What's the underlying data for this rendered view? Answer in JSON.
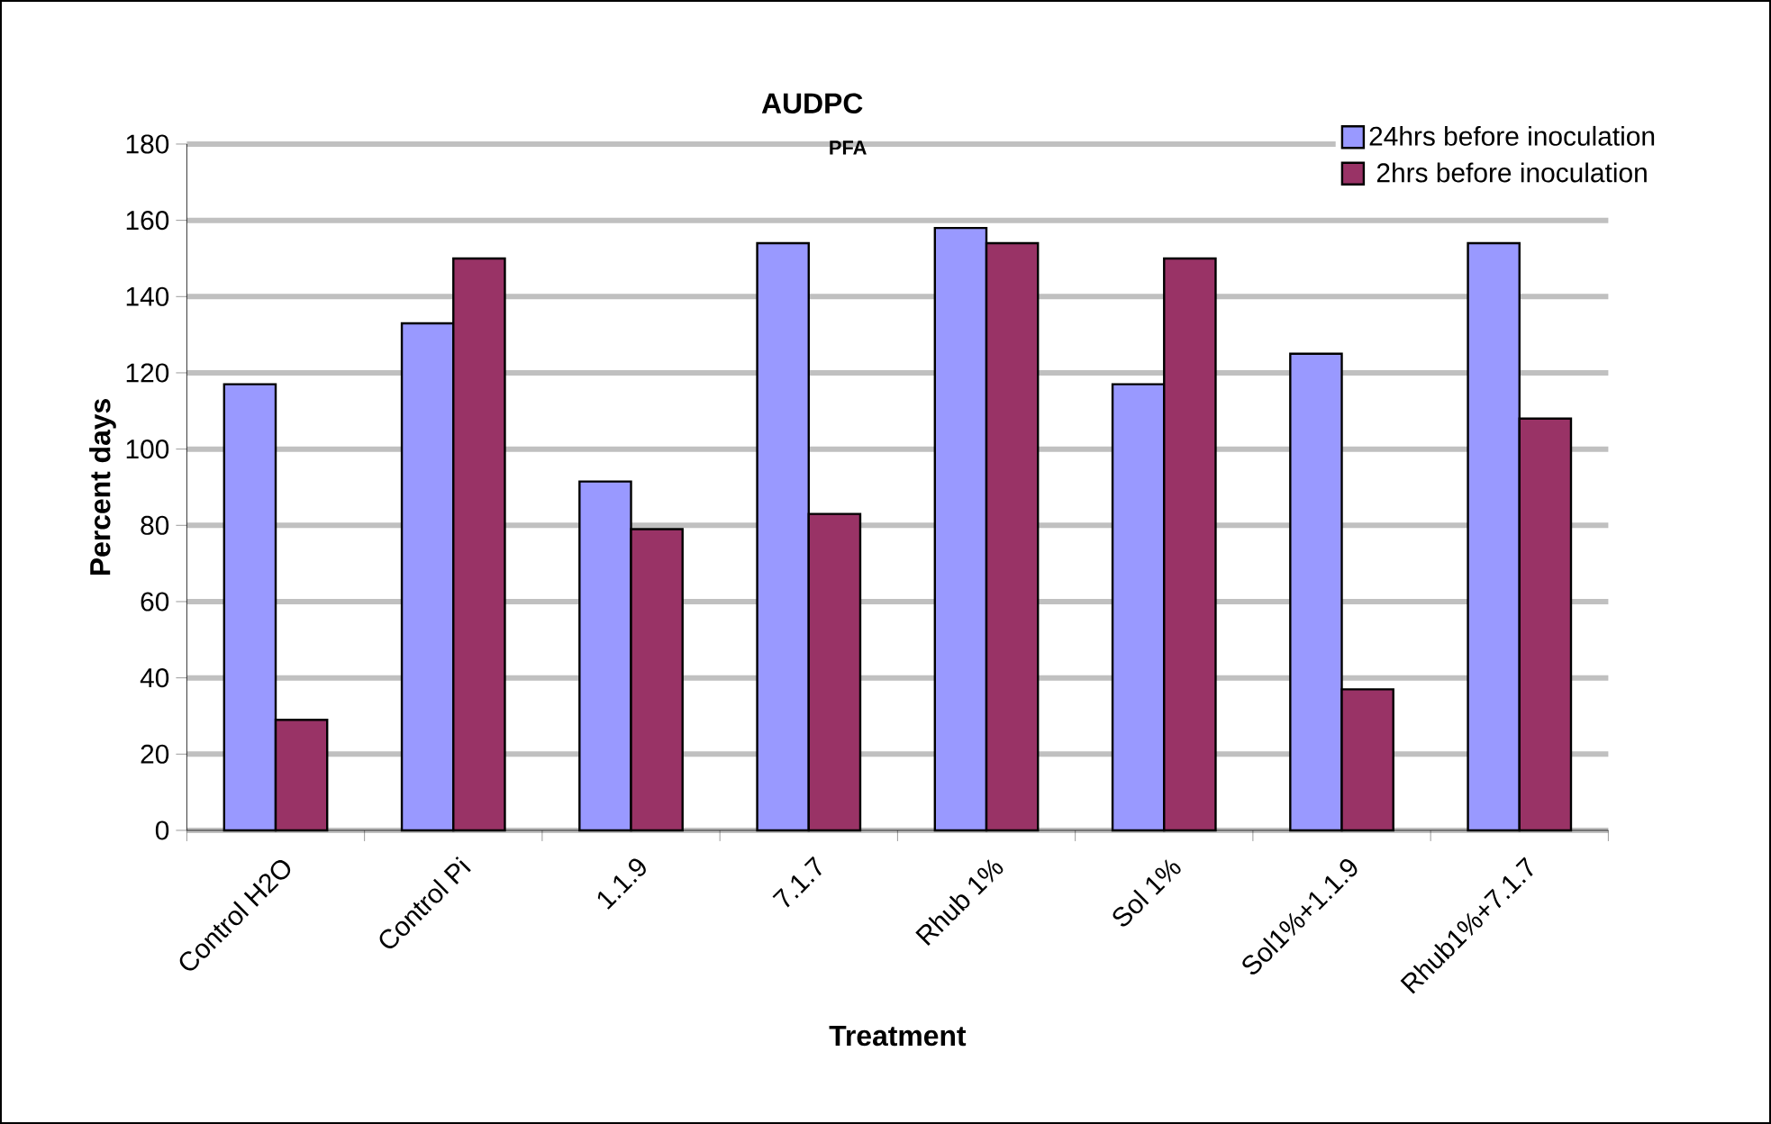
{
  "chart_data": {
    "type": "bar",
    "title": "AUDPC",
    "subtitle": "PFA",
    "xlabel": "Treatment",
    "ylabel": "Percent days",
    "categories": [
      "Control H2O",
      "Control Pi",
      "1.1.9",
      "7.1.7",
      "Rhub 1%",
      "Sol 1%",
      "Sol1%+1.1.9",
      "Rhub1%+7.1.7"
    ],
    "series": [
      {
        "name": "24hrs before inoculation",
        "color": "#9999ff",
        "values": [
          117,
          133,
          91.5,
          154,
          158,
          117,
          125,
          154
        ]
      },
      {
        "name": "2hrs before inoculation",
        "color": "#993366",
        "values": [
          29,
          150,
          79,
          83,
          154,
          150,
          37,
          108
        ]
      }
    ],
    "ylim": [
      0,
      180
    ],
    "yticks": [
      0,
      20,
      40,
      60,
      80,
      100,
      120,
      140,
      160,
      180
    ],
    "grid": "y",
    "legend": "top right"
  }
}
